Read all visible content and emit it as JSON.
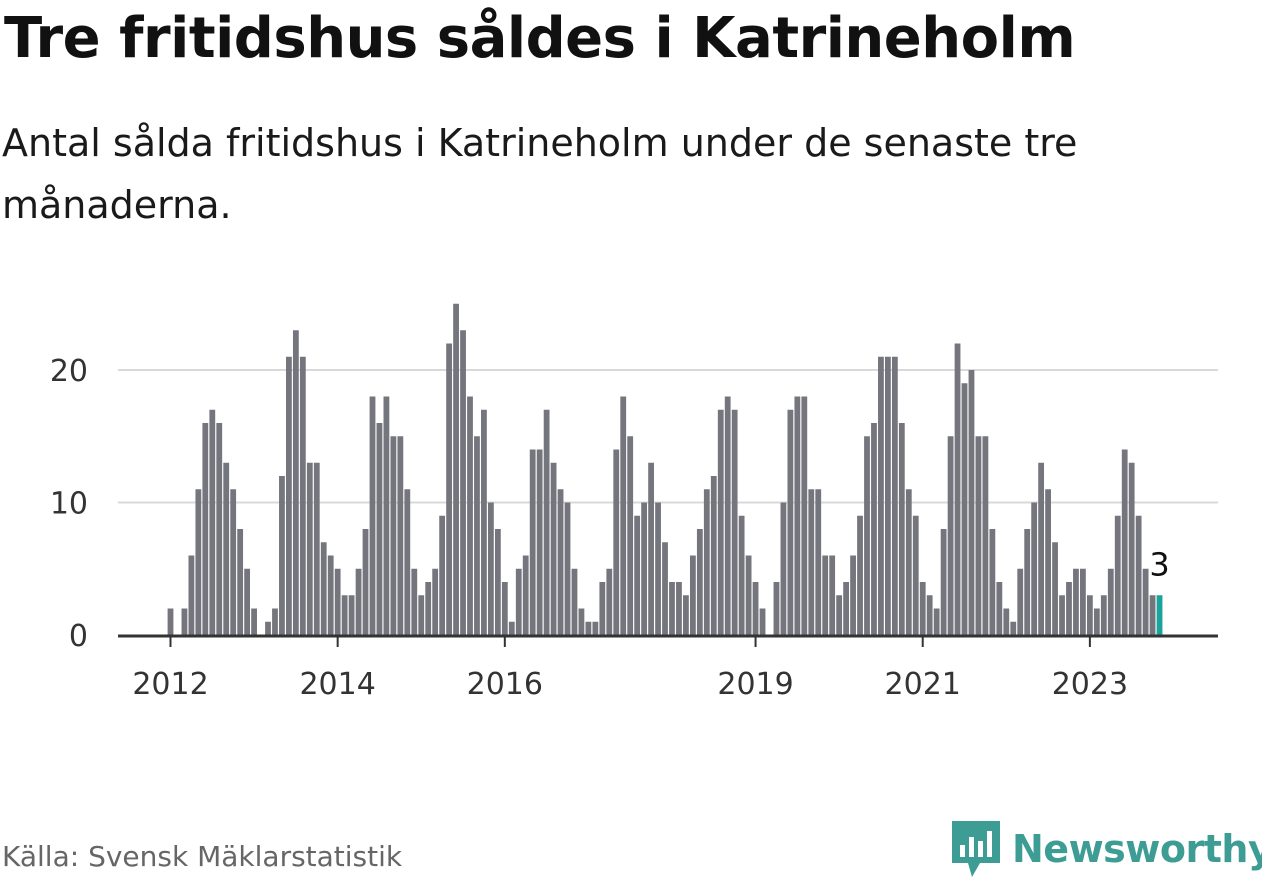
{
  "title": "Tre fritidshus såldes i Katrineholm",
  "subtitle": "Antal sålda fritidshus i Katrineholm under de senaste tre månaderna.",
  "source": "Källa: Svensk Mäklarstatistik",
  "brand": {
    "name": "Newsworthy",
    "icon": "newsworthy-logo-icon",
    "color": "#3d9c94"
  },
  "colors": {
    "bar": "#75757d",
    "highlight": "#1aa39a",
    "grid": "#d9d9d9",
    "axis": "#333333"
  },
  "chart_data": {
    "type": "bar",
    "start": "2012-01",
    "values": [
      2,
      0,
      2,
      6,
      11,
      16,
      17,
      16,
      13,
      11,
      8,
      5,
      2,
      0,
      1,
      2,
      12,
      21,
      23,
      21,
      13,
      13,
      7,
      6,
      5,
      3,
      3,
      5,
      8,
      18,
      16,
      18,
      15,
      15,
      11,
      5,
      3,
      4,
      5,
      9,
      22,
      25,
      23,
      18,
      15,
      17,
      10,
      8,
      4,
      1,
      5,
      6,
      14,
      14,
      17,
      13,
      11,
      10,
      5,
      2,
      1,
      1,
      4,
      5,
      14,
      18,
      15,
      9,
      10,
      13,
      10,
      7,
      4,
      4,
      3,
      6,
      8,
      11,
      12,
      17,
      18,
      17,
      9,
      6,
      4,
      2,
      0,
      4,
      10,
      17,
      18,
      18,
      11,
      11,
      6,
      6,
      3,
      4,
      6,
      9,
      15,
      16,
      21,
      21,
      21,
      16,
      11,
      9,
      4,
      3,
      2,
      8,
      15,
      22,
      19,
      20,
      15,
      15,
      8,
      4,
      2,
      1,
      5,
      8,
      10,
      13,
      11,
      7,
      3,
      4,
      5,
      5,
      3,
      2,
      3,
      5,
      9,
      14,
      13,
      9,
      5,
      3,
      3
    ],
    "highlight_last": true,
    "highlight_label": "3",
    "ylim": [
      0,
      25
    ],
    "yticks": [
      0,
      10,
      20
    ],
    "xticks": [
      {
        "label": "2012",
        "index": 0
      },
      {
        "label": "2014",
        "index": 24
      },
      {
        "label": "2016",
        "index": 48
      },
      {
        "label": "2019",
        "index": 84
      },
      {
        "label": "2021",
        "index": 108
      },
      {
        "label": "2023",
        "index": 132
      }
    ],
    "grid": true
  }
}
